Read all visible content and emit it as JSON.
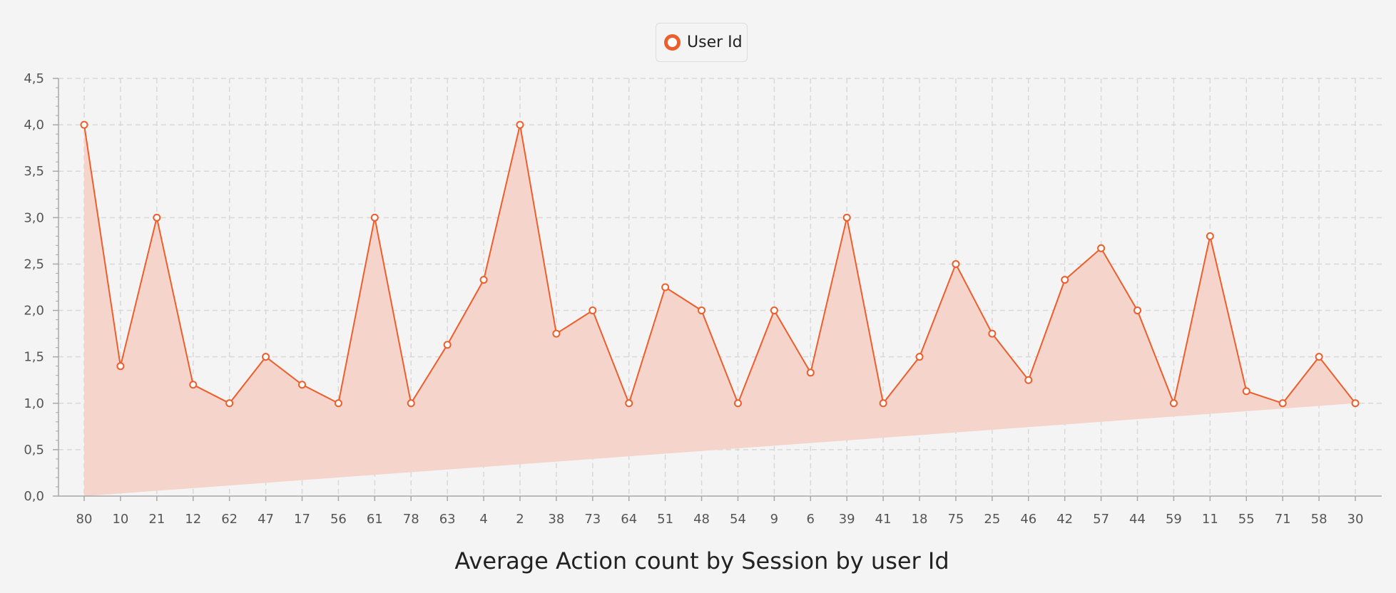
{
  "legend": {
    "series_label": "User Id"
  },
  "colors": {
    "series": "#ed5e2c",
    "area_fill": "#f5d4cb",
    "grid": "#d8d8d8",
    "axis": "#a8a8a8"
  },
  "chart_data": {
    "type": "area",
    "title": "Average Action count by Session by user Id",
    "xlabel": "",
    "ylabel": "",
    "ylim": [
      0,
      4.5
    ],
    "y_ticks": [
      "0,0",
      "0,5",
      "1,0",
      "1,5",
      "2,0",
      "2,5",
      "3,0",
      "3,5",
      "4,0",
      "4,5"
    ],
    "grid": true,
    "legend_position": "top",
    "categories": [
      "80",
      "10",
      "21",
      "12",
      "62",
      "47",
      "17",
      "56",
      "61",
      "78",
      "63",
      "4",
      "2",
      "38",
      "73",
      "64",
      "51",
      "48",
      "54",
      "9",
      "6",
      "39",
      "41",
      "18",
      "75",
      "25",
      "46",
      "42",
      "57",
      "44",
      "59",
      "11",
      "55",
      "71",
      "58",
      "30"
    ],
    "series": [
      {
        "name": "User Id",
        "values": [
          4.0,
          1.4,
          3.0,
          1.2,
          1.0,
          1.5,
          1.2,
          1.0,
          3.0,
          1.0,
          1.63,
          2.33,
          4.0,
          1.75,
          2.0,
          1.0,
          2.25,
          2.0,
          1.0,
          2.0,
          1.33,
          3.0,
          1.0,
          1.5,
          2.5,
          1.75,
          1.25,
          2.33,
          2.67,
          2.0,
          1.0,
          2.8,
          1.13,
          1.0,
          1.5,
          1.0
        ]
      }
    ]
  }
}
